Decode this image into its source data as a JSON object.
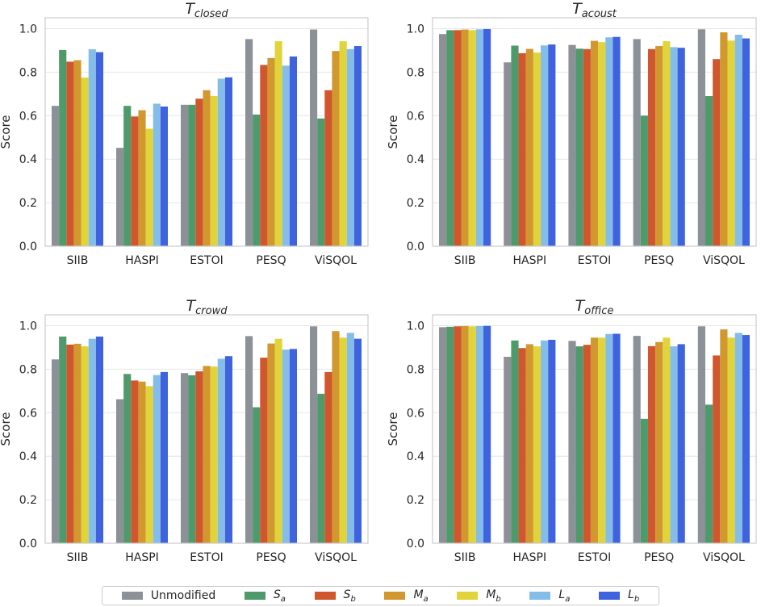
{
  "chart_data": [
    {
      "type": "bar",
      "title": {
        "base": "T",
        "sub": "closed"
      },
      "ylabel": "Score",
      "ylim": [
        0,
        1.05
      ],
      "yticks": [
        "0.0",
        "0.2",
        "0.4",
        "0.6",
        "0.8",
        "1.0"
      ],
      "categories": [
        "SIIB",
        "HASPI",
        "ESTOI",
        "PESQ",
        "ViSQOL"
      ],
      "series": [
        {
          "name": "Unmodified",
          "values": [
            0.645,
            0.452,
            0.65,
            0.952,
            0.996
          ]
        },
        {
          "name": "Sa",
          "values": [
            0.902,
            0.645,
            0.65,
            0.605,
            0.587
          ]
        },
        {
          "name": "Sb",
          "values": [
            0.848,
            0.596,
            0.678,
            0.833,
            0.717
          ]
        },
        {
          "name": "Ma",
          "values": [
            0.855,
            0.625,
            0.717,
            0.865,
            0.897
          ]
        },
        {
          "name": "Mb",
          "values": [
            0.775,
            0.54,
            0.69,
            0.942,
            0.942
          ]
        },
        {
          "name": "La",
          "values": [
            0.905,
            0.655,
            0.77,
            0.83,
            0.906
          ]
        },
        {
          "name": "Lb",
          "values": [
            0.892,
            0.642,
            0.776,
            0.872,
            0.92
          ]
        }
      ]
    },
    {
      "type": "bar",
      "title": {
        "base": "T",
        "sub": "acoust"
      },
      "ylabel": "Score",
      "ylim": [
        0,
        1.05
      ],
      "yticks": [
        "0.0",
        "0.2",
        "0.4",
        "0.6",
        "0.8",
        "1.0"
      ],
      "categories": [
        "SIIB",
        "HASPI",
        "ESTOI",
        "PESQ",
        "ViSQOL"
      ],
      "series": [
        {
          "name": "Unmodified",
          "values": [
            0.975,
            0.845,
            0.925,
            0.952,
            0.997
          ]
        },
        {
          "name": "Sa",
          "values": [
            0.993,
            0.922,
            0.908,
            0.6,
            0.69
          ]
        },
        {
          "name": "Sb",
          "values": [
            0.993,
            0.887,
            0.906,
            0.906,
            0.86
          ]
        },
        {
          "name": "Ma",
          "values": [
            0.996,
            0.907,
            0.944,
            0.92,
            0.983
          ]
        },
        {
          "name": "Mb",
          "values": [
            0.993,
            0.89,
            0.938,
            0.942,
            0.945
          ]
        },
        {
          "name": "La",
          "values": [
            0.997,
            0.923,
            0.96,
            0.915,
            0.972
          ]
        },
        {
          "name": "Lb",
          "values": [
            0.998,
            0.927,
            0.962,
            0.912,
            0.955
          ]
        }
      ]
    },
    {
      "type": "bar",
      "title": {
        "base": "T",
        "sub": "crowd"
      },
      "ylabel": "Score",
      "ylim": [
        0,
        1.05
      ],
      "yticks": [
        "0.0",
        "0.2",
        "0.4",
        "0.6",
        "0.8",
        "1.0"
      ],
      "categories": [
        "SIIB",
        "HASPI",
        "ESTOI",
        "PESQ",
        "ViSQOL"
      ],
      "series": [
        {
          "name": "Unmodified",
          "values": [
            0.845,
            0.662,
            0.782,
            0.952,
            0.997
          ]
        },
        {
          "name": "Sa",
          "values": [
            0.95,
            0.778,
            0.772,
            0.625,
            0.687
          ]
        },
        {
          "name": "Sb",
          "values": [
            0.913,
            0.748,
            0.79,
            0.853,
            0.787
          ]
        },
        {
          "name": "Ma",
          "values": [
            0.917,
            0.743,
            0.815,
            0.918,
            0.975
          ]
        },
        {
          "name": "Mb",
          "values": [
            0.905,
            0.722,
            0.812,
            0.94,
            0.945
          ]
        },
        {
          "name": "La",
          "values": [
            0.94,
            0.773,
            0.848,
            0.89,
            0.967
          ]
        },
        {
          "name": "Lb",
          "values": [
            0.95,
            0.787,
            0.86,
            0.893,
            0.94
          ]
        }
      ]
    },
    {
      "type": "bar",
      "title": {
        "base": "T",
        "sub": "office"
      },
      "ylabel": "Score",
      "ylim": [
        0,
        1.05
      ],
      "yticks": [
        "0.0",
        "0.2",
        "0.4",
        "0.6",
        "0.8",
        "1.0"
      ],
      "categories": [
        "SIIB",
        "HASPI",
        "ESTOI",
        "PESQ",
        "ViSQOL"
      ],
      "series": [
        {
          "name": "Unmodified",
          "values": [
            0.993,
            0.857,
            0.93,
            0.953,
            0.997
          ]
        },
        {
          "name": "Sa",
          "values": [
            0.995,
            0.932,
            0.905,
            0.572,
            0.637
          ]
        },
        {
          "name": "Sb",
          "values": [
            0.997,
            0.897,
            0.912,
            0.906,
            0.863
          ]
        },
        {
          "name": "Ma",
          "values": [
            0.998,
            0.915,
            0.945,
            0.925,
            0.983
          ]
        },
        {
          "name": "Mb",
          "values": [
            0.997,
            0.905,
            0.945,
            0.945,
            0.945
          ]
        },
        {
          "name": "La",
          "values": [
            0.998,
            0.932,
            0.962,
            0.905,
            0.967
          ]
        },
        {
          "name": "Lb",
          "values": [
            0.999,
            0.935,
            0.963,
            0.915,
            0.957
          ]
        }
      ]
    }
  ],
  "legend": {
    "placement": "bottom-center",
    "items": [
      {
        "base": "Unmodified",
        "sub": "",
        "color": "#8b9196"
      },
      {
        "base": "S",
        "sub": "a",
        "color": "#4e9a6b"
      },
      {
        "base": "S",
        "sub": "b",
        "color": "#d0562d"
      },
      {
        "base": "M",
        "sub": "a",
        "color": "#d1982f"
      },
      {
        "base": "M",
        "sub": "b",
        "color": "#e1d43a"
      },
      {
        "base": "L",
        "sub": "a",
        "color": "#85bde9"
      },
      {
        "base": "L",
        "sub": "b",
        "color": "#3f63de"
      }
    ]
  },
  "colors": {
    "grid": "#e6e6e6",
    "spine": "#cccccc"
  }
}
